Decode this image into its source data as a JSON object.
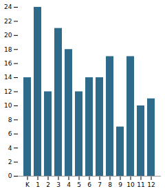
{
  "chart_data": {
    "type": "bar",
    "categories": [
      "K",
      "1",
      "2",
      "3",
      "4",
      "5",
      "6",
      "7",
      "8",
      "9",
      "10",
      "11",
      "12"
    ],
    "values": [
      14,
      24,
      12,
      21,
      18,
      12,
      14,
      14,
      17,
      7,
      17,
      10,
      11
    ],
    "color": "#2e6b8a",
    "ylim": [
      0,
      24
    ],
    "yticks": [
      0,
      2,
      4,
      6,
      8,
      10,
      12,
      14,
      16,
      18,
      20,
      22,
      24
    ],
    "grid": false
  }
}
